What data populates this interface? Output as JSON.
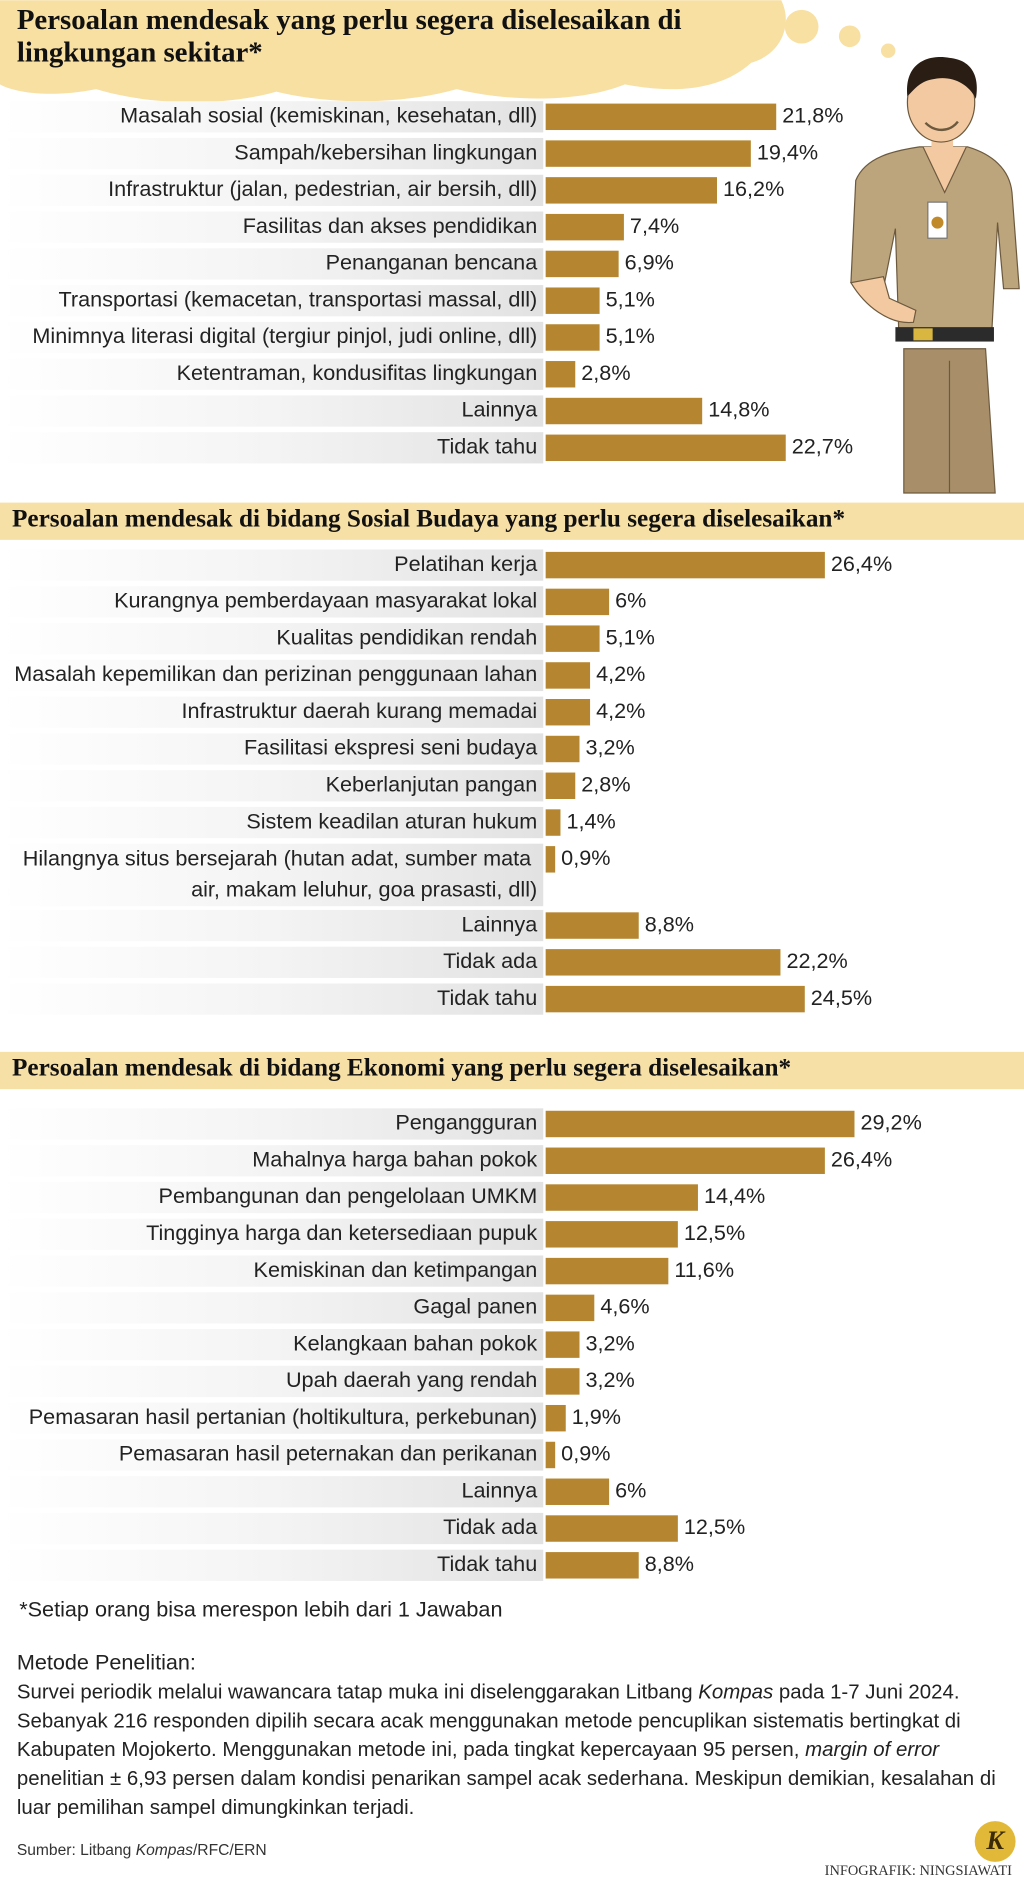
{
  "chart_data": [
    {
      "type": "bar",
      "orientation": "horizontal",
      "title": "Persoalan mendesak yang perlu segera diselesaikan di lingkungan sekitar*",
      "color": "#b5862f",
      "categories": [
        "Masalah sosial (kemiskinan, kesehatan, dll)",
        "Sampah/kebersihan lingkungan",
        "Infrastruktur (jalan, pedestrian, air bersih, dll)",
        "Fasilitas dan akses pendidikan",
        "Penanganan bencana",
        "Transportasi (kemacetan, transportasi massal, dll)",
        "Minimnya literasi digital (tergiur pinjol, judi online, dll)",
        "Ketentraman, kondusifitas lingkungan",
        "Lainnya",
        "Tidak tahu"
      ],
      "values": [
        21.8,
        19.4,
        16.2,
        7.4,
        6.9,
        5.1,
        5.1,
        2.8,
        14.8,
        22.7
      ],
      "value_labels": [
        "21,8%",
        "19,4%",
        "16,2%",
        "7,4%",
        "6,9%",
        "5,1%",
        "5,1%",
        "2,8%",
        "14,8%",
        "22,7%"
      ]
    },
    {
      "type": "bar",
      "orientation": "horizontal",
      "title": "Persoalan mendesak di bidang Sosial Budaya yang perlu segera diselesaikan*",
      "color": "#b5862f",
      "categories": [
        "Pelatihan kerja",
        "Kurangnya pemberdayaan masyarakat lokal",
        "Kualitas pendidikan rendah",
        "Masalah kepemilikan dan perizinan penggunaan lahan",
        "Infrastruktur daerah kurang memadai",
        "Fasilitasi ekspresi seni budaya",
        "Keberlanjutan pangan",
        "Sistem keadilan aturan hukum",
        "Hilangnya situs bersejarah (hutan adat, sumber mata air, makam leluhur, goa prasasti, dll)",
        "Lainnya",
        "Tidak ada",
        "Tidak tahu"
      ],
      "values": [
        26.4,
        6,
        5.1,
        4.2,
        4.2,
        3.2,
        2.8,
        1.4,
        0.9,
        8.8,
        22.2,
        24.5
      ],
      "value_labels": [
        "26,4%",
        "6%",
        "5,1%",
        "4,2%",
        "4,2%",
        "3,2%",
        "2,8%",
        "1,4%",
        "0,9%",
        "8,8%",
        "22,2%",
        "24,5%"
      ]
    },
    {
      "type": "bar",
      "orientation": "horizontal",
      "title": "Persoalan mendesak di bidang Ekonomi yang perlu segera diselesaikan*",
      "color": "#b5862f",
      "categories": [
        "Pengangguran",
        "Mahalnya harga bahan pokok",
        "Pembangunan dan pengelolaan UMKM",
        "Tingginya harga dan ketersediaan pupuk",
        "Kemiskinan dan ketimpangan",
        "Gagal panen",
        "Kelangkaan bahan pokok",
        "Upah daerah yang rendah",
        "Pemasaran hasil pertanian (holtikultura, perkebunan)",
        "Pemasaran hasil peternakan dan perikanan",
        "Lainnya",
        "Tidak ada",
        "Tidak tahu"
      ],
      "values": [
        29.2,
        26.4,
        14.4,
        12.5,
        11.6,
        4.6,
        3.2,
        3.2,
        1.9,
        0.9,
        6,
        12.5,
        8.8
      ],
      "value_labels": [
        "29,2%",
        "26,4%",
        "14,4%",
        "12,5%",
        "11,6%",
        "4,6%",
        "3,2%",
        "3,2%",
        "1,9%",
        "0,9%",
        "6%",
        "12,5%",
        "8,8%"
      ]
    }
  ],
  "footnote": "*Setiap orang bisa merespon lebih dari 1 Jawaban",
  "method": {
    "title": "Metode Penelitian:",
    "paragraph": [
      {
        "text": "Survei periodik melalui wawancara tatap muka ini diselenggarakan Litbang "
      },
      {
        "text": "Kompas",
        "italic": true
      },
      {
        "text": " pada 1-7 Juni 2024. Sebanyak 216 responden dipilih secara acak menggunakan metode pencuplikan sistematis bertingkat di Kabupaten Mojokerto. Menggunakan metode ini, pada tingkat kepercayaan 95 persen, "
      },
      {
        "text": "margin of error",
        "italic": true
      },
      {
        "text": " penelitian ± 6,93 persen dalam kondisi penarikan sampel acak sederhana. Meskipun demikian, kesalahan di luar pemilihan sampel dimungkinkan terjadi."
      }
    ]
  },
  "source": [
    {
      "text": "Sumber: Litbang "
    },
    {
      "text": "Kompas",
      "italic": true
    },
    {
      "text": "/RFC/ERN"
    }
  ],
  "credit": "INFOGRAFIK: NINGSIAWATI",
  "logo": "K"
}
